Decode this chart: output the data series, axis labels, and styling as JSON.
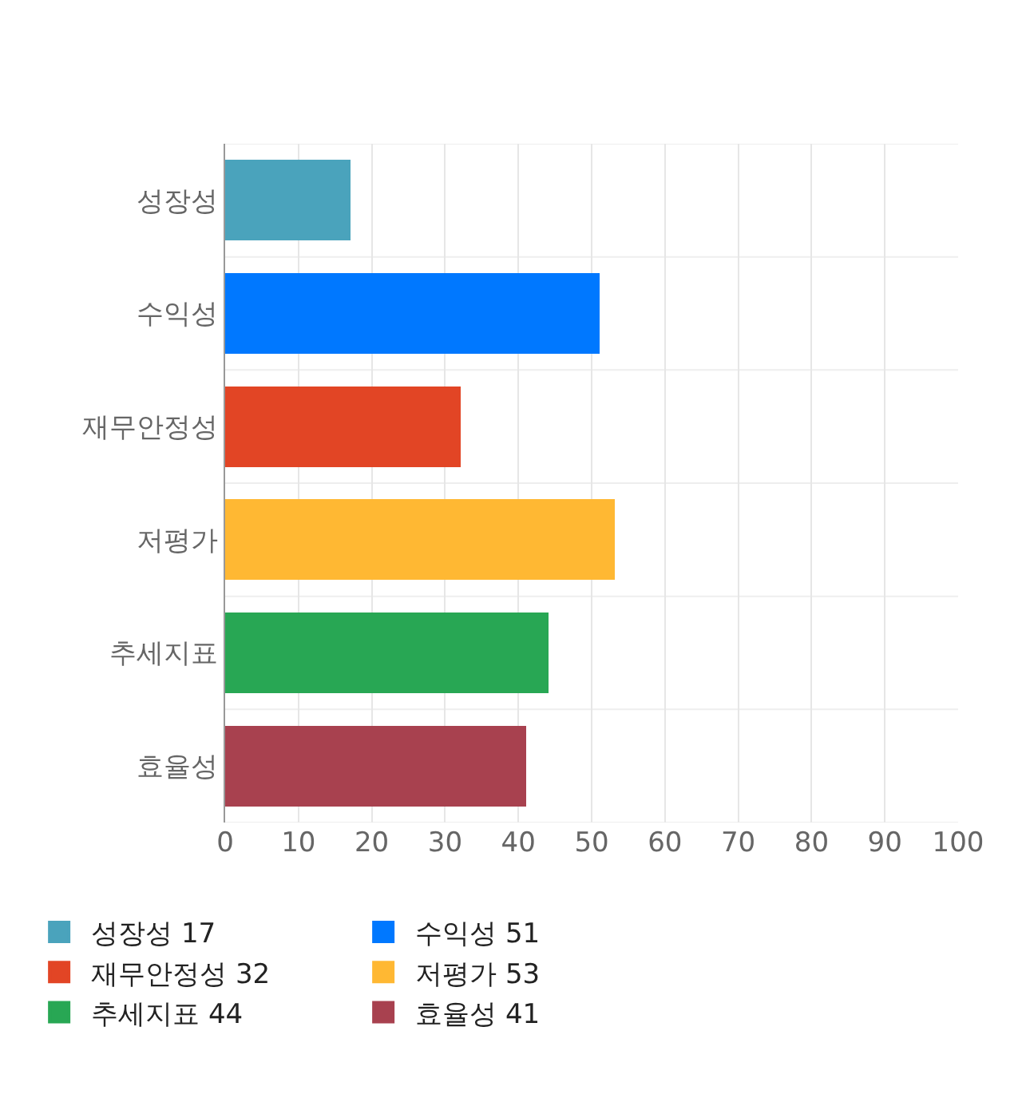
{
  "chart_data": {
    "type": "bar",
    "orientation": "horizontal",
    "stacked": true,
    "categories": [
      "성장성",
      "수익성",
      "재무안정성",
      "저평가",
      "추세지표",
      "효율성"
    ],
    "series": [
      {
        "name": "성장성 17",
        "color": "#4aa3bc",
        "values": [
          17,
          null,
          null,
          null,
          null,
          null
        ]
      },
      {
        "name": "수익성 51",
        "color": "#0078ff",
        "values": [
          null,
          51,
          null,
          null,
          null,
          null
        ]
      },
      {
        "name": "재무안정성 32",
        "color": "#e24525",
        "values": [
          null,
          null,
          32,
          null,
          null,
          null
        ]
      },
      {
        "name": "저평가 53",
        "color": "#ffb833",
        "values": [
          null,
          null,
          null,
          53,
          null,
          null
        ]
      },
      {
        "name": "추세지표 44",
        "color": "#28a754",
        "values": [
          null,
          null,
          null,
          null,
          44,
          null
        ]
      },
      {
        "name": "효율성 41",
        "color": "#a8414f",
        "values": [
          null,
          null,
          null,
          null,
          null,
          41
        ]
      }
    ],
    "xlim": [
      0,
      100
    ],
    "xticks": [
      0,
      10,
      20,
      30,
      40,
      50,
      60,
      70,
      80,
      90,
      100
    ],
    "grid": true,
    "legend": "bottom"
  }
}
